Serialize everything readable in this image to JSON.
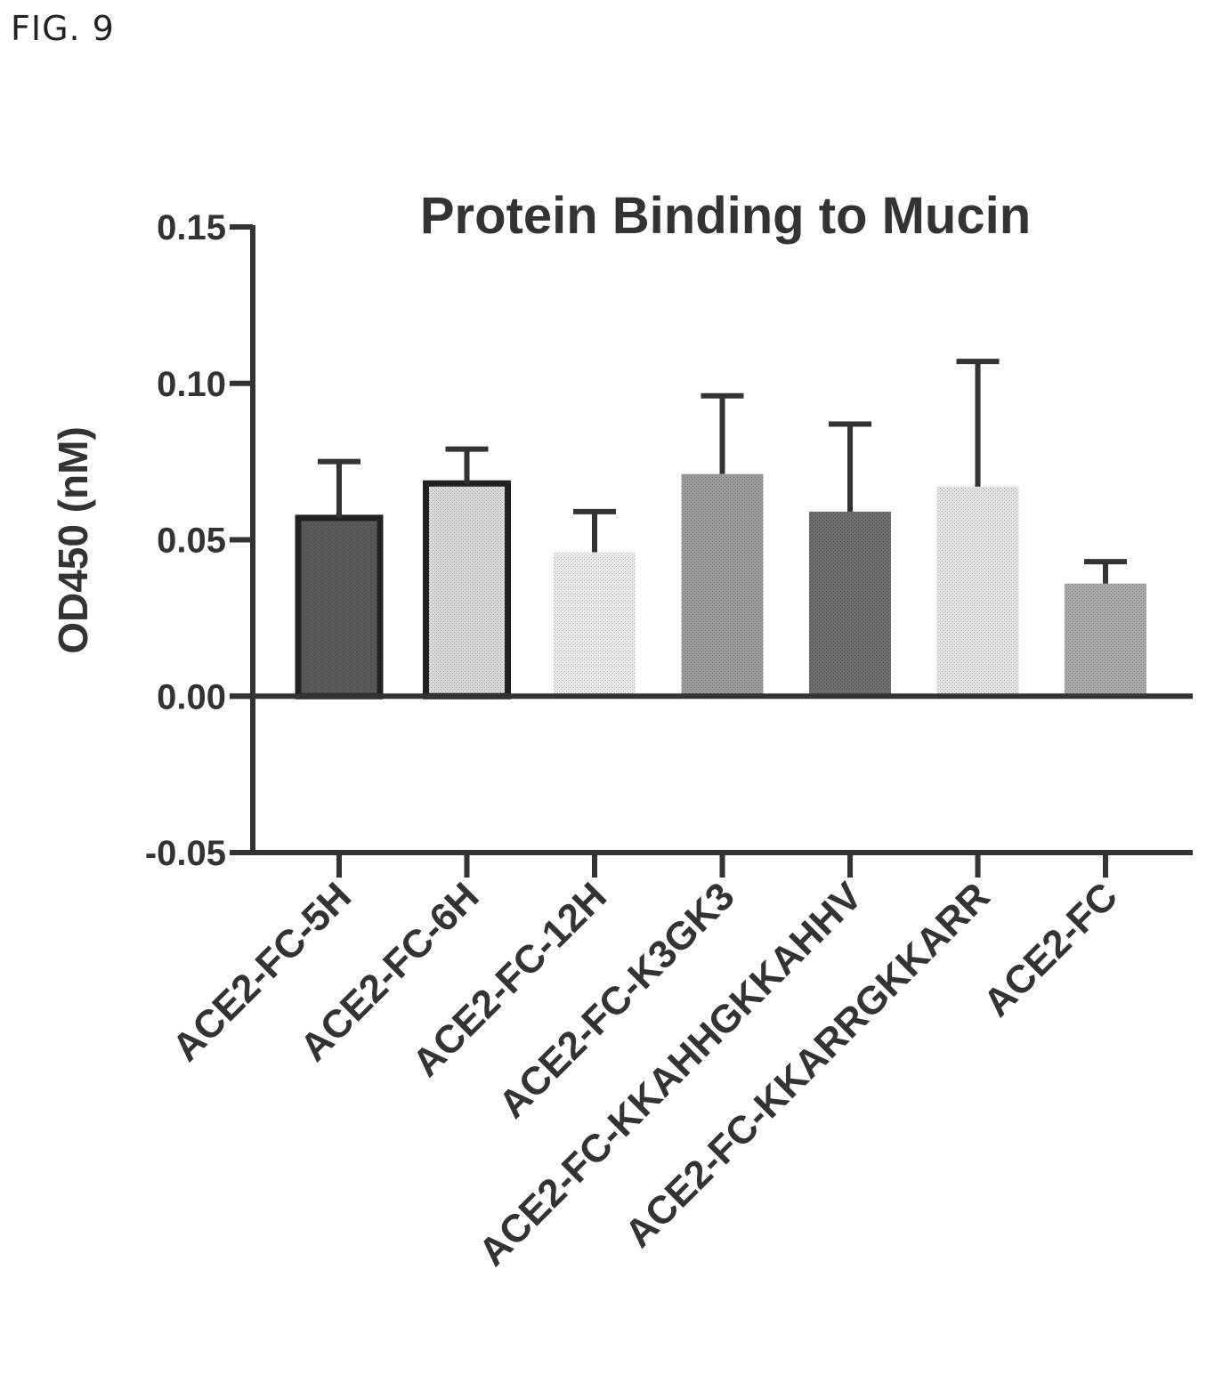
{
  "figure_label": "FIG. 9",
  "chart_data": {
    "type": "bar",
    "title": "Protein Binding to Mucin",
    "xlabel": "",
    "ylabel": "OD450 (nM)",
    "ylim": [
      -0.05,
      0.15
    ],
    "yticks": [
      "-0.05",
      "0.00",
      "0.05",
      "0.10",
      "0.15"
    ],
    "grid": false,
    "categories": [
      "ACE2-FC-5H",
      "ACE2-FC-6H",
      "ACE2-FC-12H",
      "ACE2-FC-K3GK3",
      "ACE2-FC-KKAHHGKKAHHV",
      "ACE2-FC-KKARRGKKARR",
      "ACE2-FC"
    ],
    "values": [
      0.057,
      0.068,
      0.046,
      0.071,
      0.059,
      0.067,
      0.036
    ],
    "errors": [
      0.018,
      0.011,
      0.013,
      0.025,
      0.028,
      0.04,
      0.007
    ],
    "colors": [
      "#5a5a5a",
      "#d8d8d8",
      "#ececec",
      "#9c9c9c",
      "#6e6e6e",
      "#e4e4e4",
      "#a8a8a8"
    ],
    "outlined": [
      true,
      true,
      false,
      false,
      false,
      false,
      false
    ]
  }
}
